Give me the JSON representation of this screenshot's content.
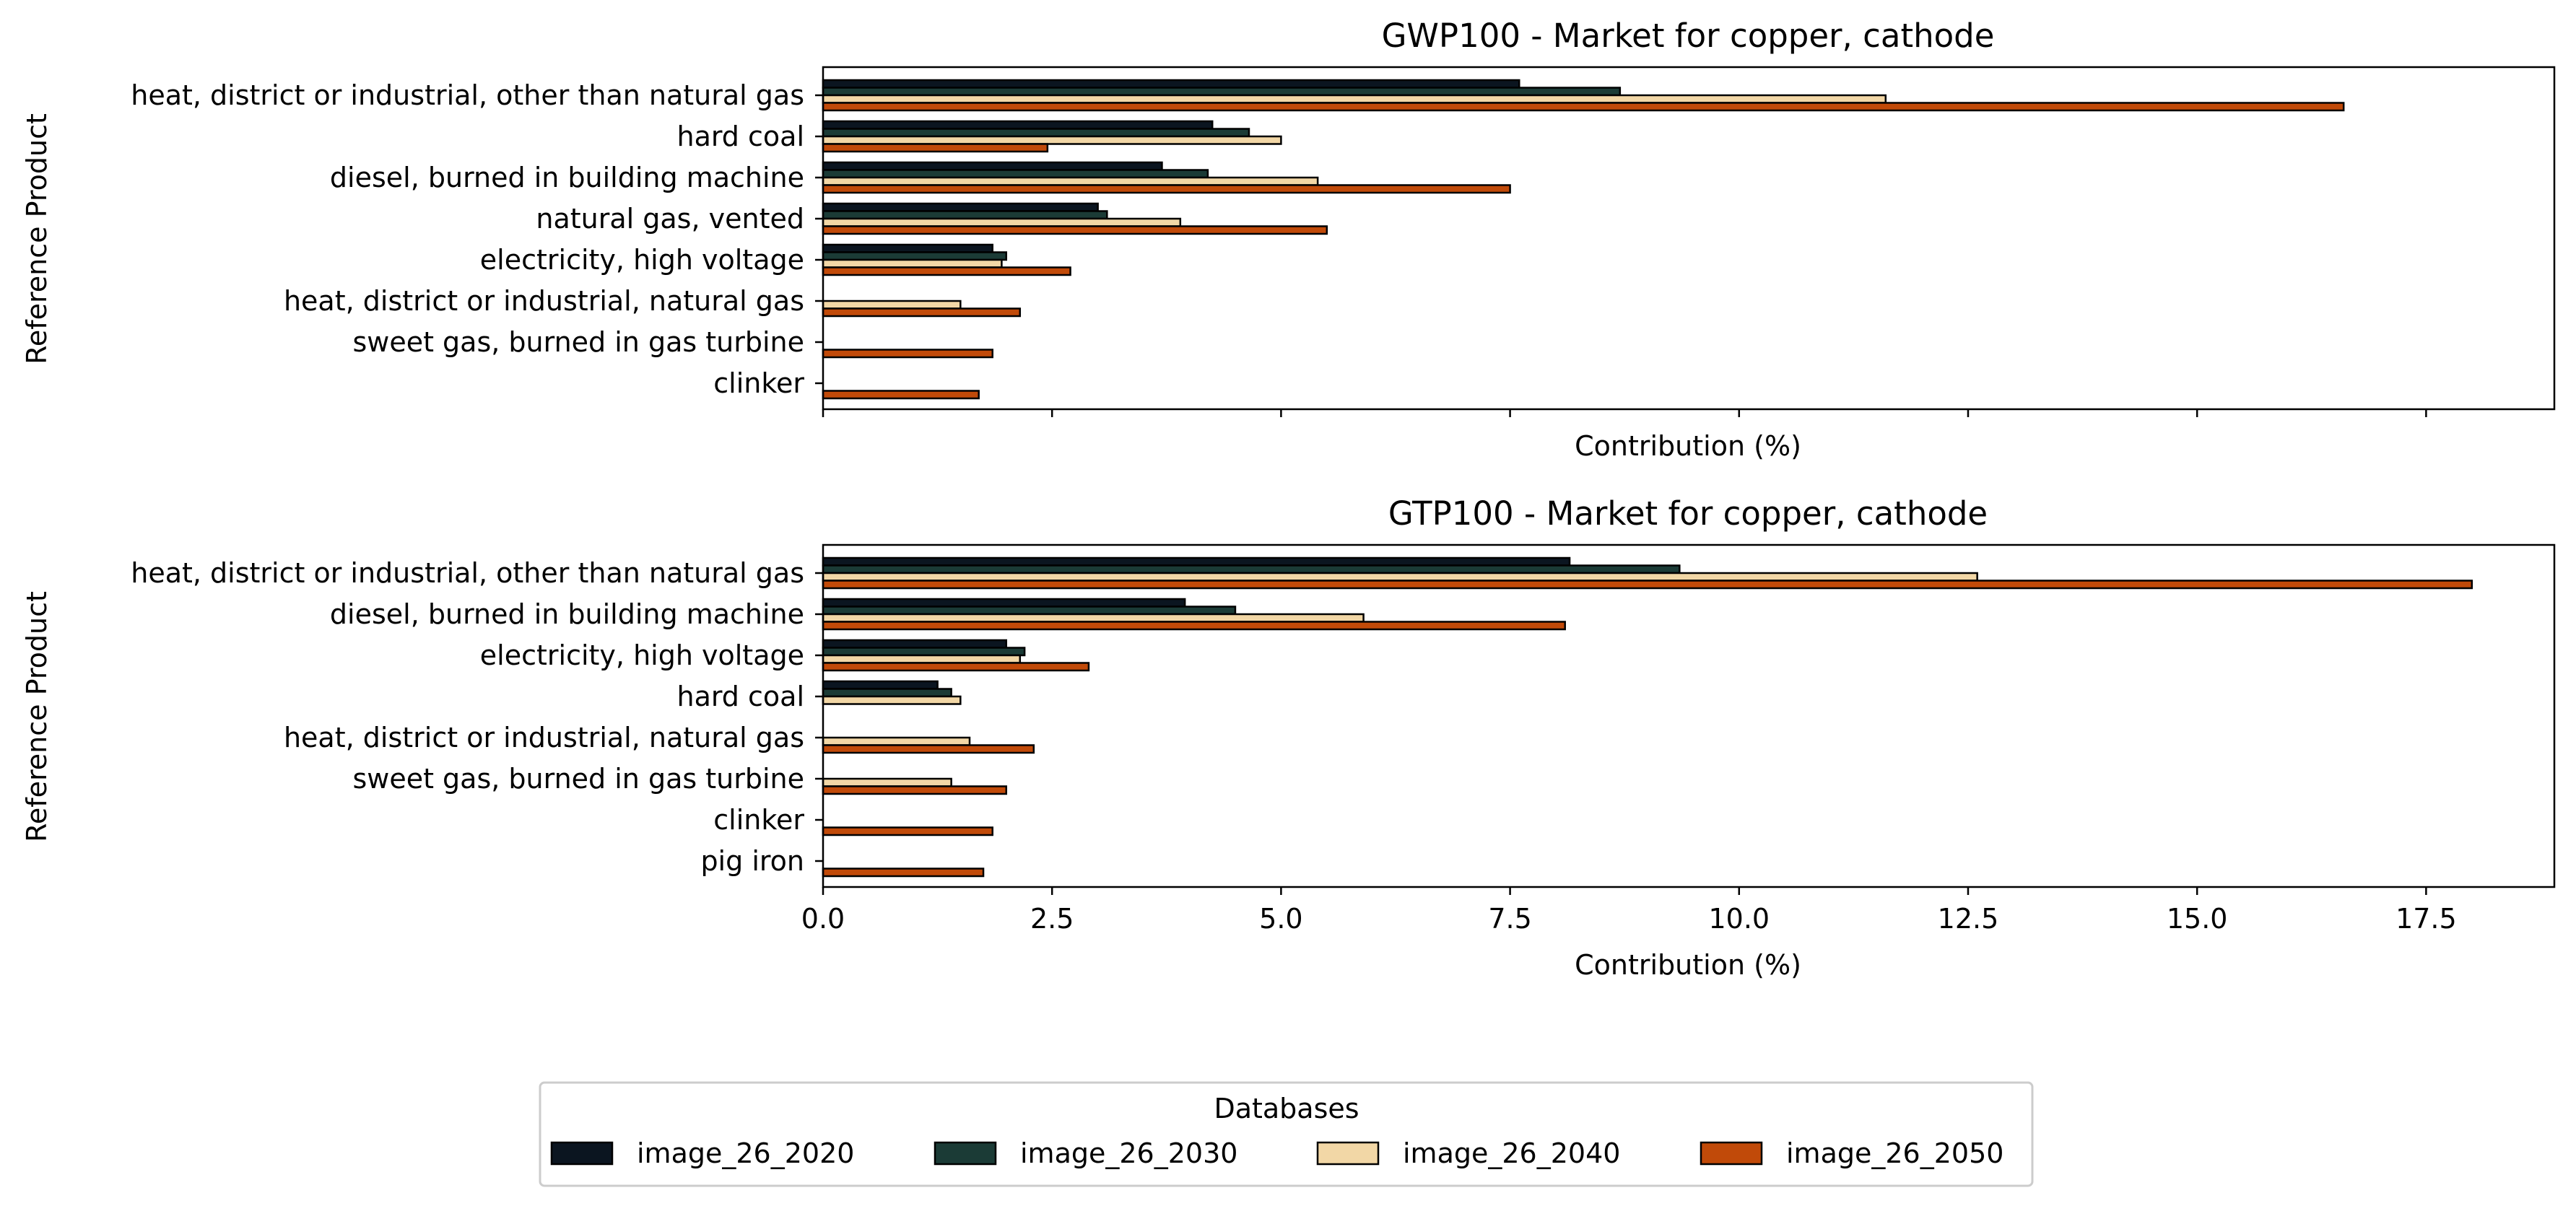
{
  "legend": {
    "title": "Databases",
    "entries": [
      {
        "label": "image_26_2020",
        "color": "#0b1520"
      },
      {
        "label": "image_26_2030",
        "color": "#1b3b36"
      },
      {
        "label": "image_26_2040",
        "color": "#f2d7a6"
      },
      {
        "label": "image_26_2050",
        "color": "#c14a09"
      }
    ]
  },
  "chart_data": [
    {
      "type": "bar",
      "orientation": "horizontal",
      "title": "GWP100 - Market for copper, cathode",
      "xlabel": "Contribution (%)",
      "ylabel": "Reference Product",
      "xlim": [
        0,
        18.9
      ],
      "xticks": [
        0,
        2.5,
        5,
        7.5,
        10,
        12.5,
        15,
        17.5
      ],
      "show_xtick_labels": false,
      "grid": false,
      "categories": [
        "heat, district or industrial, other than natural gas",
        "hard coal",
        "diesel, burned in building machine",
        "natural gas, vented",
        "electricity, high voltage",
        "heat, district or industrial, natural gas",
        "sweet gas, burned in gas turbine",
        "clinker"
      ],
      "series": [
        {
          "name": "image_26_2020",
          "color": "#0b1520",
          "values": [
            7.6,
            4.25,
            3.7,
            3.0,
            1.85,
            0,
            0,
            0
          ]
        },
        {
          "name": "image_26_2030",
          "color": "#1b3b36",
          "values": [
            8.7,
            4.65,
            4.2,
            3.1,
            2.0,
            0,
            0,
            0
          ]
        },
        {
          "name": "image_26_2040",
          "color": "#f2d7a6",
          "values": [
            11.6,
            5.0,
            5.4,
            3.9,
            1.95,
            1.5,
            0,
            0
          ]
        },
        {
          "name": "image_26_2050",
          "color": "#c14a09",
          "values": [
            16.6,
            2.45,
            7.5,
            5.5,
            2.7,
            2.15,
            1.85,
            1.7
          ]
        }
      ]
    },
    {
      "type": "bar",
      "orientation": "horizontal",
      "title": "GTP100 - Market for copper, cathode",
      "xlabel": "Contribution (%)",
      "ylabel": "Reference Product",
      "xlim": [
        0,
        18.9
      ],
      "xticks": [
        0,
        2.5,
        5,
        7.5,
        10,
        12.5,
        15,
        17.5
      ],
      "xtick_labels": [
        "0.0",
        "2.5",
        "5.0",
        "7.5",
        "10.0",
        "12.5",
        "15.0",
        "17.5"
      ],
      "show_xtick_labels": true,
      "grid": false,
      "categories": [
        "heat, district or industrial, other than natural gas",
        "diesel, burned in building machine",
        "electricity, high voltage",
        "hard coal",
        "heat, district or industrial, natural gas",
        "sweet gas, burned in gas turbine",
        "clinker",
        "pig iron"
      ],
      "series": [
        {
          "name": "image_26_2020",
          "color": "#0b1520",
          "values": [
            8.15,
            3.95,
            2.0,
            1.25,
            0,
            0,
            0,
            0
          ]
        },
        {
          "name": "image_26_2030",
          "color": "#1b3b36",
          "values": [
            9.35,
            4.5,
            2.2,
            1.4,
            0,
            0,
            0,
            0
          ]
        },
        {
          "name": "image_26_2040",
          "color": "#f2d7a6",
          "values": [
            12.6,
            5.9,
            2.15,
            1.5,
            1.6,
            1.4,
            0,
            0
          ]
        },
        {
          "name": "image_26_2050",
          "color": "#c14a09",
          "values": [
            18.0,
            8.1,
            2.9,
            0,
            2.3,
            2.0,
            1.85,
            1.75
          ]
        }
      ]
    }
  ]
}
